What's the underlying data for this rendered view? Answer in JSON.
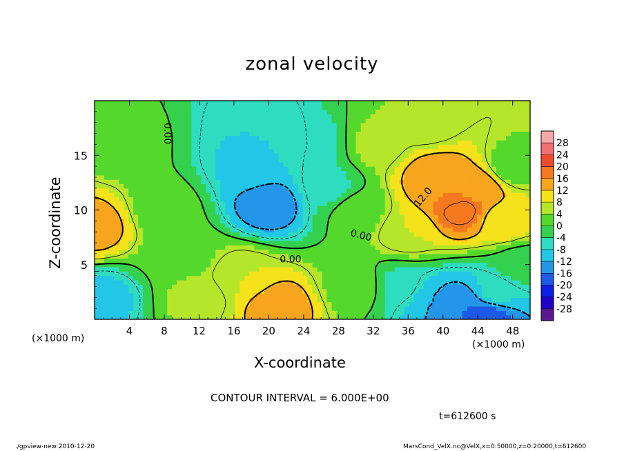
{
  "chart_data": {
    "type": "heatmap",
    "title": "zonal velocity",
    "xlabel": "X-coordinate",
    "ylabel": "Z-coordinate",
    "x_unit_label": "(×1000 m)",
    "y_unit_label": "(×1000 m)",
    "xlim": [
      0,
      50
    ],
    "ylim": [
      0,
      20
    ],
    "x_ticks": [
      4,
      8,
      12,
      16,
      20,
      24,
      28,
      32,
      36,
      40,
      44,
      48
    ],
    "y_ticks": [
      5,
      10,
      15
    ],
    "colorbar": {
      "levels": [
        -28,
        -24,
        -20,
        -16,
        -12,
        -8,
        -4,
        0,
        4,
        8,
        12,
        16,
        20,
        24,
        28
      ],
      "colors": [
        "#5a1890",
        "#2200c8",
        "#0d1ee6",
        "#1d5ae6",
        "#2396ea",
        "#22c6e6",
        "#2edcc0",
        "#33d14d",
        "#55d82c",
        "#b6e62a",
        "#f6e21a",
        "#f7a51c",
        "#f5781f",
        "#f24a30",
        "#f47070",
        "#f5a8a8"
      ]
    },
    "contour_interval_text": "CONTOUR INTERVAL = 6.000E+00",
    "contour_labels": [
      {
        "text": "0.00",
        "x": 8.0,
        "z": 17.0,
        "rotation": 90
      },
      {
        "text": "12.0",
        "x": 38.0,
        "z": 11.0,
        "rotation": -50
      },
      {
        "text": "0.00",
        "x": 30.5,
        "z": 7.4,
        "rotation": 15
      },
      {
        "text": "0.00",
        "x": 22.5,
        "z": 5.2,
        "rotation": 0
      }
    ],
    "time_label": "t=612600 s",
    "features": [
      {
        "x": 30,
        "z": 10,
        "value": 2
      },
      {
        "x": 8,
        "z": 10,
        "value": 2
      },
      {
        "x": 1,
        "z": 2,
        "value": -9
      },
      {
        "x": 3,
        "z": 16,
        "value": 2
      },
      {
        "x": 0,
        "z": 8.5,
        "value": 14
      },
      {
        "x": 20,
        "z": 10.5,
        "value": -15
      },
      {
        "x": 18,
        "z": 14,
        "value": -9
      },
      {
        "x": 19,
        "z": 17,
        "value": -8
      },
      {
        "x": 27,
        "z": 12,
        "value": -5
      },
      {
        "x": 25,
        "z": 16,
        "value": -6
      },
      {
        "x": 17,
        "z": 4,
        "value": 8
      },
      {
        "x": 21,
        "z": 1.2,
        "value": 15
      },
      {
        "x": 12,
        "z": 2,
        "value": 5
      },
      {
        "x": 32.5,
        "z": 16,
        "value": 5
      },
      {
        "x": 41,
        "z": 11.5,
        "value": 16
      },
      {
        "x": 42,
        "z": 10,
        "value": 19
      },
      {
        "x": 39,
        "z": 13,
        "value": 15
      },
      {
        "x": 44,
        "z": 12,
        "value": 15
      },
      {
        "x": 47,
        "z": 9,
        "value": 10
      },
      {
        "x": 36,
        "z": 8,
        "value": 8
      },
      {
        "x": 35,
        "z": 3,
        "value": -5
      },
      {
        "x": 42,
        "z": 1.2,
        "value": -16
      },
      {
        "x": 39,
        "z": 1.5,
        "value": -12
      },
      {
        "x": 46,
        "z": 2.5,
        "value": -7
      },
      {
        "x": 45,
        "z": 0.3,
        "value": -18
      },
      {
        "x": 48,
        "z": 14,
        "value": 2
      },
      {
        "x": 49,
        "z": 5,
        "value": -2
      },
      {
        "x": 30,
        "z": 3,
        "value": 3
      },
      {
        "x": 10,
        "z": 6,
        "value": 2
      },
      {
        "x": 38,
        "z": 18,
        "value": 4
      }
    ]
  },
  "footer_left": "./gpview-new  2010-12-20",
  "footer_right": "MarsCond_VelX.nc@VelX,x=0:50000,z=0:20000,t=612600"
}
